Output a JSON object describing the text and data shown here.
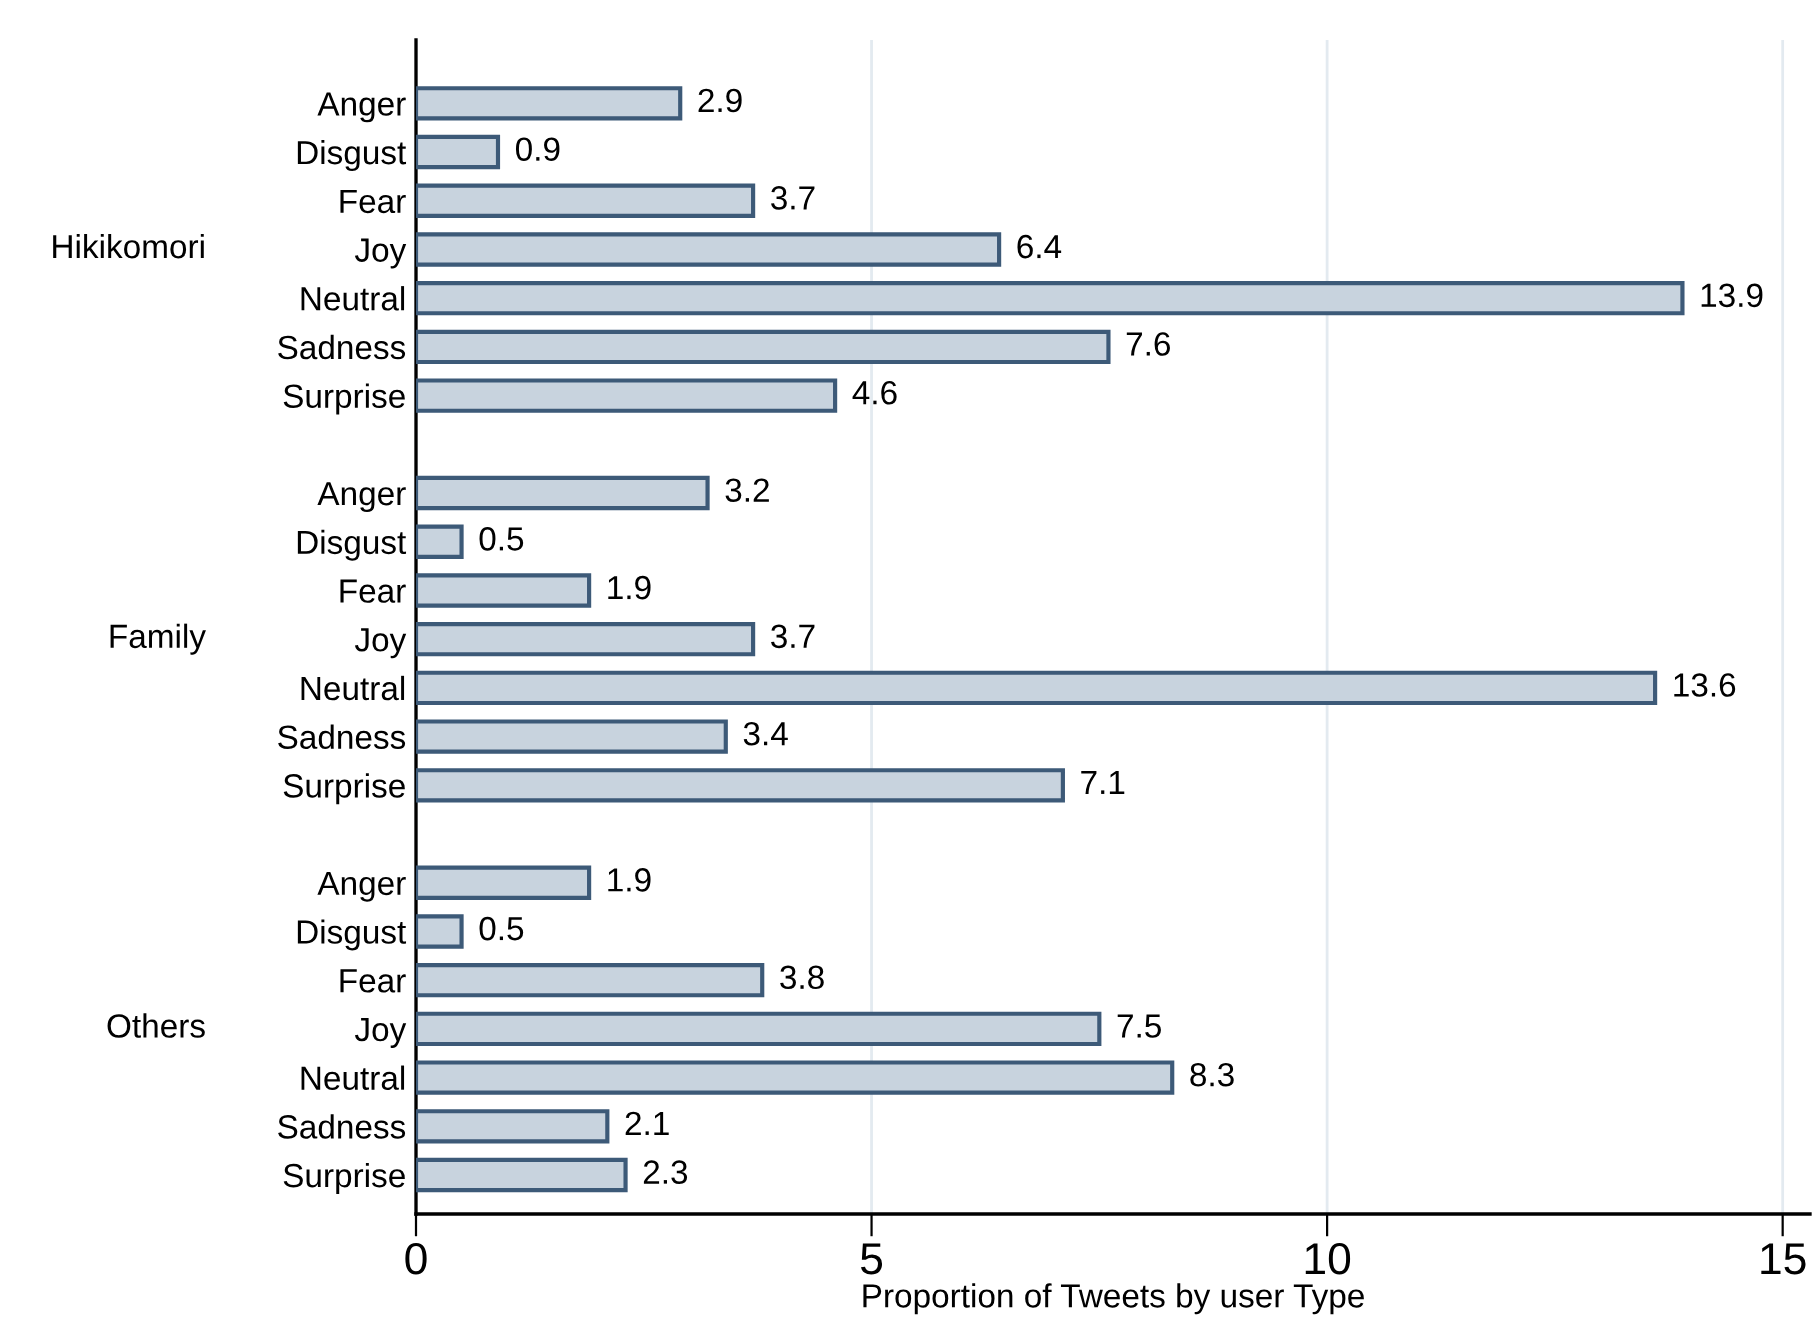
{
  "chart_data": {
    "type": "bar",
    "orientation": "horizontal",
    "xlabel": "Proportion of Tweets by user Type",
    "categories": [
      "Anger",
      "Disgust",
      "Fear",
      "Joy",
      "Neutral",
      "Sadness",
      "Surprise",
      null,
      "Anger",
      "Disgust",
      "Fear",
      "Joy",
      "Neutral",
      "Sadness",
      "Surprise",
      null,
      "Anger",
      "Disgust",
      "Fear",
      "Joy",
      "Neutral",
      "Sadness",
      "Surprise"
    ],
    "values": [
      2.9,
      0.9,
      3.7,
      6.4,
      13.9,
      7.6,
      4.6,
      null,
      3.2,
      0.5,
      1.9,
      3.7,
      13.6,
      3.4,
      7.1,
      null,
      1.9,
      0.5,
      3.8,
      7.5,
      8.3,
      2.1,
      2.3
    ],
    "color": "#c8d3de",
    "data_labels": true,
    "annotations": [
      "Hikikomori",
      "Family",
      "Others"
    ],
    "xlim": [
      0,
      15.3
    ],
    "xticks": [
      0,
      5,
      10,
      15
    ],
    "grid": "x",
    "legend": false
  }
}
